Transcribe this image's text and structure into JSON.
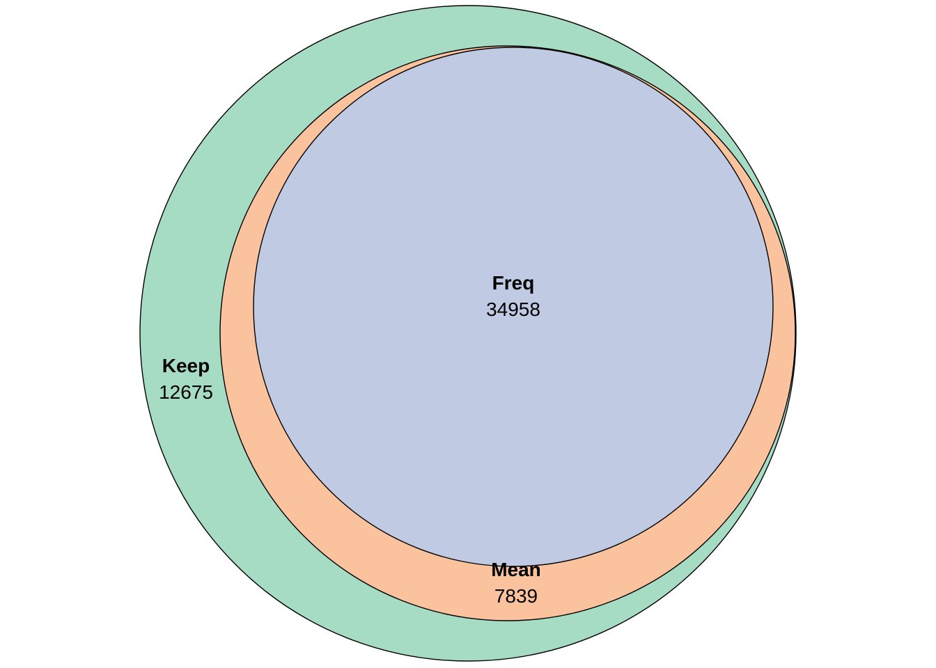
{
  "diagram": {
    "type": "euler",
    "sets": [
      {
        "key": "keep",
        "name": "Keep",
        "count": "12675",
        "color": "#a6dcc4"
      },
      {
        "key": "mean",
        "name": "Mean",
        "count": "7839",
        "color": "#fbc29e"
      },
      {
        "key": "freq",
        "name": "Freq",
        "count": "34958",
        "color": "#c0cae2"
      }
    ]
  }
}
